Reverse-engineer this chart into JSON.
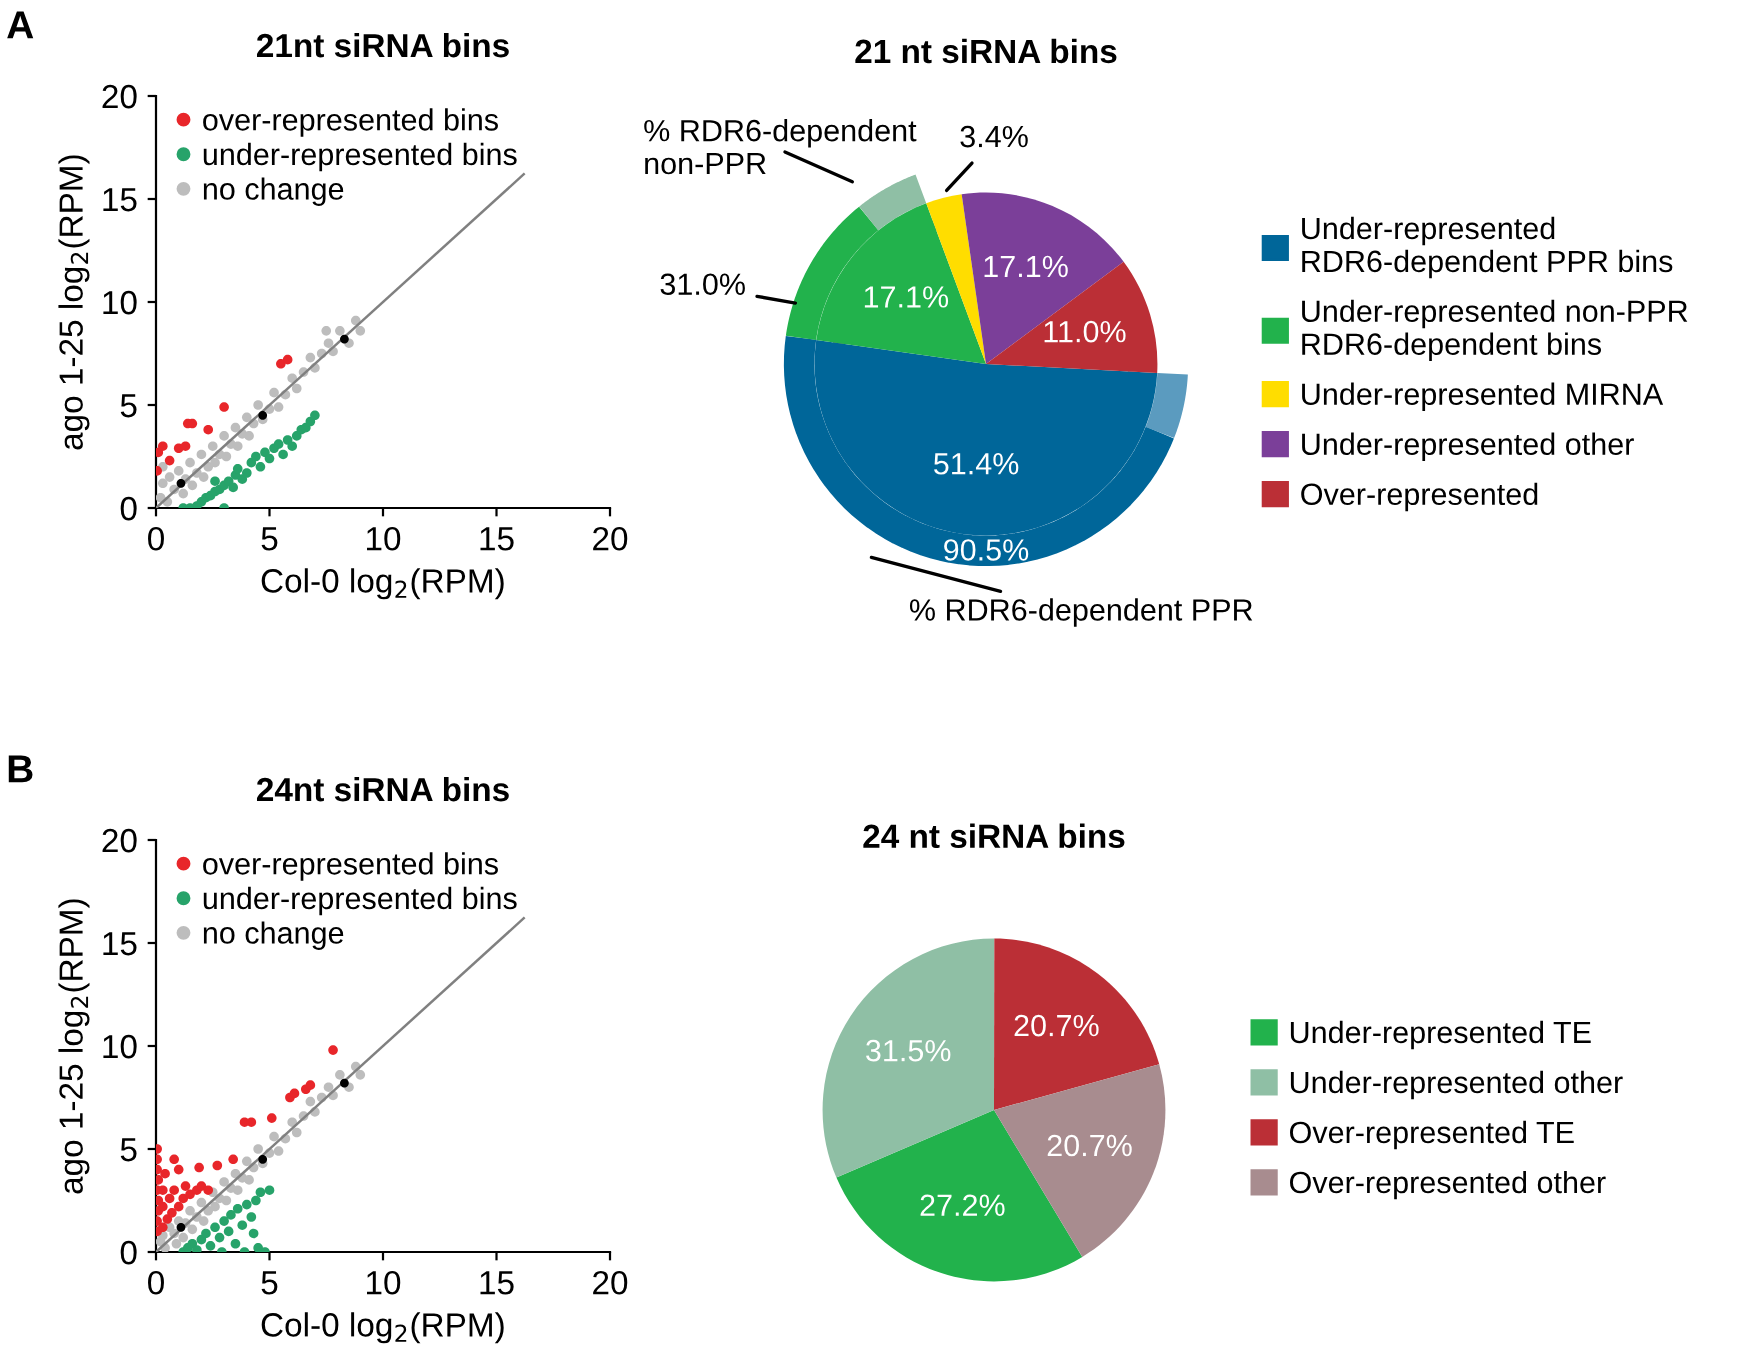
{
  "chart_data": [
    {
      "type": "scatter",
      "title": "21nt siRNA bins",
      "xlabel": "Col-0 log$_{2}$(RPM)",
      "ylabel": "ago 1-25 log$_{2}$(RPM)",
      "annotations": [
        "A"
      ],
      "xlim": [
        0,
        20
      ],
      "ylim": [
        0,
        20
      ],
      "xticks": [
        0,
        5,
        10,
        15,
        20
      ],
      "yticks": [
        0,
        5,
        10,
        15,
        20
      ],
      "grid": false,
      "legend": "top left",
      "marker": "circle",
      "series": [
        {
          "name": "no change",
          "color": "#bdbdbd",
          "x": [
            0.2,
            0.3,
            0.5,
            0.6,
            0.8,
            1.0,
            1.2,
            1.3,
            1.5,
            1.6,
            1.8,
            2.0,
            2.1,
            2.3,
            2.5,
            2.6,
            2.8,
            3.0,
            3.1,
            3.3,
            3.5,
            3.6,
            3.8,
            4.0,
            4.1,
            4.3,
            4.5,
            4.7,
            5.0,
            5.2,
            5.4,
            5.7,
            6.0,
            6.2,
            6.5,
            6.8,
            7.0,
            7.3,
            7.6,
            7.8,
            8.1,
            8.5,
            8.8,
            9.0,
            7.5,
            0.3
          ],
          "values": [
            0.5,
            1.2,
            0.3,
            1.5,
            0.9,
            1.8,
            0.7,
            1.4,
            2.2,
            1.1,
            1.7,
            2.6,
            1.5,
            2.0,
            3.0,
            2.2,
            2.6,
            3.5,
            2.5,
            3.1,
            3.9,
            3.0,
            3.6,
            4.4,
            3.5,
            4.1,
            5.0,
            4.3,
            4.8,
            5.6,
            4.9,
            5.5,
            6.3,
            5.8,
            6.6,
            7.3,
            6.8,
            7.5,
            8.0,
            7.6,
            8.6,
            8.0,
            9.1,
            8.6,
            8.6,
            2.0
          ]
        },
        {
          "name": "over-represented bins",
          "color": "#e8262a",
          "x": [
            0.05,
            0.1,
            0.3,
            0.6,
            1.0,
            1.3,
            1.4,
            1.6,
            2.3,
            3.0,
            5.5,
            5.8
          ],
          "values": [
            1.8,
            2.7,
            3.0,
            2.3,
            2.9,
            3.0,
            4.1,
            4.1,
            3.8,
            4.9,
            7.0,
            7.2
          ]
        },
        {
          "name": "under-represented bins",
          "color": "#27a36a",
          "x": [
            1.2,
            1.5,
            1.8,
            2.0,
            2.2,
            2.4,
            2.6,
            2.8,
            3.0,
            3.0,
            3.2,
            3.4,
            3.5,
            3.6,
            3.8,
            4.0,
            4.2,
            4.4,
            4.6,
            4.8,
            5.0,
            5.2,
            5.4,
            5.6,
            5.8,
            6.0,
            6.2,
            6.4,
            6.6,
            6.8,
            7.0,
            2.6
          ],
          "values": [
            0.0,
            0.0,
            0.1,
            0.3,
            0.5,
            0.6,
            0.8,
            0.9,
            0.0,
            1.1,
            1.3,
            1.0,
            1.6,
            1.9,
            1.4,
            1.7,
            2.2,
            2.5,
            2.0,
            2.7,
            2.4,
            2.9,
            3.1,
            2.6,
            3.3,
            3.0,
            3.5,
            3.8,
            3.9,
            4.2,
            4.5,
            1.3
          ]
        },
        {
          "type": "line",
          "marker": "none",
          "color": "#808080",
          "x": [
            0,
            16.2
          ],
          "values": [
            0,
            16.2
          ]
        },
        {
          "color": "#000000",
          "x": [
            1.1,
            4.7,
            8.3
          ],
          "values": [
            1.2,
            4.5,
            8.2
          ]
        }
      ]
    },
    {
      "type": "pie",
      "title": "21 nt siRNA bins",
      "categories": [
        "Under-represented\nRDR6-dependent PPR bins",
        "Under-represented non-PPR\nRDR6-dependent bins",
        "Under-represented MIRNA",
        "Under-represented other",
        "Over-represented"
      ],
      "values": [
        51.4,
        17.1,
        3.4,
        17.1,
        11.0
      ],
      "colors": [
        "#006699",
        "#22b24c",
        "#ffdd00",
        "#7b3f99",
        "#bb2f36"
      ],
      "value_labels": [
        "51.4%",
        "17.1%",
        "3.4%",
        "17.1%",
        "11.0%"
      ],
      "data_labels": true,
      "legend": "right",
      "annotations": [
        "% RDR6-dependent\nnon-PPR",
        "31.0%",
        "90.5%",
        "% RDR6-dependent PPR"
      ]
    },
    {
      "type": "scatter",
      "title": "24nt siRNA bins",
      "xlabel": "Col-0 log$_{2}$(RPM)",
      "ylabel": "ago 1-25 log$_{2}$(RPM)",
      "annotations": [
        "B"
      ],
      "xlim": [
        0,
        20
      ],
      "ylim": [
        0,
        20
      ],
      "xticks": [
        0,
        5,
        10,
        15,
        20
      ],
      "yticks": [
        0,
        5,
        10,
        15,
        20
      ],
      "grid": false,
      "legend": "top left",
      "marker": "circle",
      "series": [
        {
          "name": "no change",
          "color": "#bdbdbd",
          "x": [
            0.2,
            0.3,
            0.6,
            0.8,
            1.0,
            1.2,
            1.3,
            1.5,
            1.6,
            1.8,
            2.0,
            2.1,
            2.3,
            2.5,
            2.6,
            2.8,
            3.0,
            3.1,
            3.3,
            3.5,
            3.6,
            3.8,
            4.0,
            4.1,
            4.3,
            4.5,
            4.7,
            5.0,
            5.2,
            5.4,
            5.7,
            6.0,
            6.2,
            6.5,
            6.8,
            7.0,
            7.3,
            7.6,
            7.8,
            8.1,
            8.5,
            8.8,
            9.0,
            0.4,
            0.9
          ],
          "values": [
            0.5,
            0.8,
            1.2,
            0.9,
            1.5,
            0.7,
            1.4,
            2.0,
            1.1,
            1.7,
            2.4,
            1.5,
            2.0,
            2.9,
            2.2,
            2.6,
            3.4,
            2.5,
            3.1,
            3.8,
            3.0,
            3.6,
            4.4,
            3.5,
            4.1,
            5.0,
            4.3,
            4.8,
            5.6,
            4.9,
            5.5,
            6.3,
            5.8,
            6.6,
            7.3,
            6.8,
            7.5,
            8.0,
            7.6,
            8.6,
            8.0,
            9.0,
            8.6,
            0.2,
            0.4
          ]
        },
        {
          "name": "over-represented bins",
          "color": "#e8262a",
          "x": [
            0.05,
            0.05,
            0.1,
            0.1,
            0.05,
            0.1,
            0.05,
            0.05,
            0.05,
            0.3,
            0.3,
            0.3,
            0.4,
            0.5,
            0.6,
            0.7,
            0.8,
            1.0,
            1.2,
            1.3,
            1.5,
            1.8,
            2.0,
            2.3,
            1.0,
            1.9,
            2.7,
            3.4,
            3.9,
            4.2,
            5.1,
            5.9,
            6.1,
            6.6,
            6.8,
            7.8,
            0.8
          ],
          "values": [
            1.0,
            1.5,
            2.0,
            2.5,
            3.0,
            3.5,
            4.0,
            4.5,
            5.0,
            1.2,
            2.2,
            3.0,
            3.8,
            1.6,
            2.6,
            1.9,
            3.0,
            2.2,
            2.6,
            3.2,
            2.8,
            3.0,
            3.2,
            3.0,
            4.0,
            4.1,
            4.2,
            4.5,
            6.3,
            6.3,
            6.5,
            7.5,
            7.7,
            7.9,
            8.1,
            9.8,
            4.5
          ]
        },
        {
          "name": "under-represented bins",
          "color": "#27a36a",
          "x": [
            1.2,
            1.4,
            1.6,
            1.8,
            2.0,
            2.2,
            2.4,
            2.6,
            2.8,
            3.0,
            3.2,
            3.3,
            3.5,
            3.6,
            3.8,
            4.0,
            4.2,
            4.4,
            4.6,
            4.5,
            4.8,
            3.9,
            2.9,
            5.0,
            4.3
          ],
          "values": [
            0.0,
            0.2,
            0.4,
            0.1,
            0.6,
            0.9,
            0.3,
            1.2,
            0.7,
            1.5,
            1.0,
            1.8,
            0.4,
            2.1,
            1.3,
            2.3,
            1.7,
            2.5,
            2.9,
            0.2,
            0.0,
            0.0,
            0.0,
            3.0,
            0.9
          ]
        },
        {
          "type": "line",
          "marker": "none",
          "color": "#808080",
          "x": [
            0,
            16.2
          ],
          "values": [
            0,
            16.2
          ]
        },
        {
          "color": "#000000",
          "x": [
            1.1,
            4.7,
            8.3
          ],
          "values": [
            1.2,
            4.5,
            8.2
          ]
        }
      ]
    },
    {
      "type": "pie",
      "title": "24 nt siRNA bins",
      "categories": [
        "Under-represented TE",
        "Under-represented other",
        "Over-represented TE",
        "Over-represented other"
      ],
      "values": [
        27.2,
        31.5,
        20.7,
        20.7
      ],
      "colors": [
        "#22b24c",
        "#8fbfa5",
        "#bb2f36",
        "#a88c8f"
      ],
      "value_labels": [
        "27.2%",
        "31.5%",
        "20.7%",
        "20.7%"
      ],
      "data_labels": true,
      "legend": "right"
    }
  ]
}
